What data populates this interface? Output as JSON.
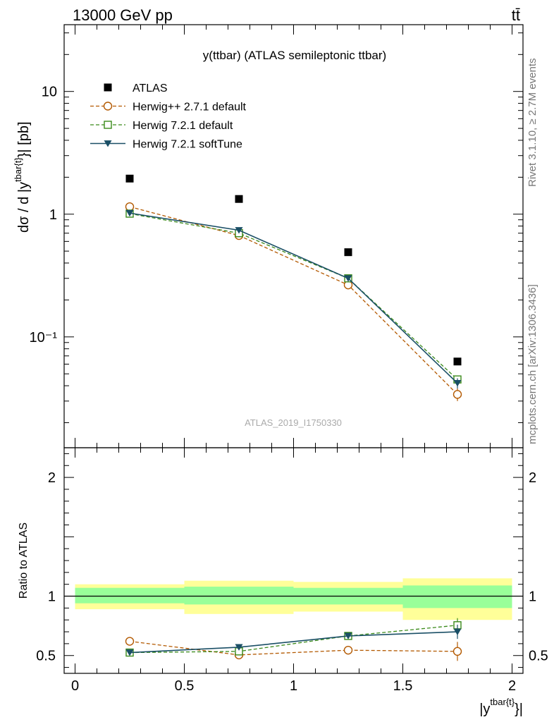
{
  "header": {
    "left_title": "13000 GeV pp",
    "right_title": "tt̄"
  },
  "side_labels": {
    "rivet": "Rivet 3.1.10, ≥ 2.7M events",
    "mcplots": "mcplots.cern.ch [arXiv:1306.3436]"
  },
  "chart_data": [
    {
      "type": "scatter",
      "title": "y(ttbar) (ATLAS semileptonic ttbar)",
      "watermark": "ATLAS_2019_I1750330",
      "xlabel": "|y^{tbar{t}}|",
      "ylabel": "dσ / d |y^{tbar{t}}| [pb]",
      "yscale": "log",
      "ylim": [
        0.0125,
        35
      ],
      "xlim": [
        -0.05,
        2.05
      ],
      "y_tick_labels": [
        "10⁻¹",
        "1",
        "10"
      ],
      "legend_position": "top-left",
      "series": [
        {
          "name": "ATLAS",
          "color": "#000000",
          "marker": "filled-square",
          "x": [
            0.25,
            0.75,
            1.25,
            1.75
          ],
          "y": [
            1.95,
            1.33,
            0.49,
            0.063
          ]
        },
        {
          "name": "Herwig++ 2.7.1 default",
          "color": "#b35900",
          "marker": "open-circle",
          "line": "dashed",
          "x": [
            0.25,
            0.75,
            1.25,
            1.75
          ],
          "y": [
            1.15,
            0.67,
            0.265,
            0.034
          ],
          "yerr": [
            0.02,
            0.015,
            0.008,
            0.004
          ]
        },
        {
          "name": "Herwig 7.2.1 default",
          "color": "#3a8a1a",
          "marker": "open-square",
          "line": "dashed",
          "x": [
            0.25,
            0.75,
            1.25,
            1.75
          ],
          "y": [
            1.01,
            0.7,
            0.3,
            0.045
          ],
          "yerr": [
            0.015,
            0.012,
            0.006,
            0.003
          ]
        },
        {
          "name": "Herwig 7.2.1 softTune",
          "color": "#1a4f66",
          "marker": "filled-triangle-down",
          "line": "solid",
          "x": [
            0.25,
            0.75,
            1.25,
            1.75
          ],
          "y": [
            1.02,
            0.74,
            0.3,
            0.042
          ],
          "yerr": [
            0.015,
            0.012,
            0.006,
            0.004
          ]
        }
      ]
    },
    {
      "type": "scatter",
      "ylabel": "Ratio to ATLAS",
      "xlabel": "|y^{tbar{t}}|",
      "ylim": [
        0.35,
        2.25
      ],
      "xlim": [
        -0.05,
        2.05
      ],
      "x_tick_labels": [
        "0",
        "0.5",
        "1",
        "1.5",
        "2"
      ],
      "y_tick_labels": [
        "0.5",
        "1",
        "2"
      ],
      "bands": {
        "bins": [
          [
            0,
            0.5
          ],
          [
            0.5,
            1.0
          ],
          [
            1.0,
            1.5
          ],
          [
            1.5,
            2.0
          ]
        ],
        "inner": [
          [
            0.94,
            1.07
          ],
          [
            0.93,
            1.08
          ],
          [
            0.93,
            1.07
          ],
          [
            0.9,
            1.09
          ]
        ],
        "outer": [
          [
            0.89,
            1.1
          ],
          [
            0.85,
            1.13
          ],
          [
            0.87,
            1.12
          ],
          [
            0.8,
            1.15
          ]
        ],
        "inner_color": "#99ff99",
        "outer_color": "#ffff99"
      },
      "series": [
        {
          "name": "Herwig++ 2.7.1 default",
          "color": "#b35900",
          "marker": "open-circle",
          "line": "dashed",
          "x": [
            0.25,
            0.75,
            1.25,
            1.75
          ],
          "y": [
            0.62,
            0.505,
            0.545,
            0.535
          ],
          "yerr": [
            0.01,
            0.01,
            0.02,
            0.08
          ]
        },
        {
          "name": "Herwig 7.2.1 default",
          "color": "#3a8a1a",
          "marker": "open-square",
          "line": "dashed",
          "x": [
            0.25,
            0.75,
            1.25,
            1.75
          ],
          "y": [
            0.525,
            0.535,
            0.665,
            0.755
          ],
          "yerr": [
            0.01,
            0.01,
            0.015,
            0.06
          ]
        },
        {
          "name": "Herwig 7.2.1 softTune",
          "color": "#1a4f66",
          "marker": "filled-triangle-down",
          "line": "solid",
          "x": [
            0.25,
            0.75,
            1.25,
            1.75
          ],
          "y": [
            0.525,
            0.57,
            0.665,
            0.7
          ],
          "yerr": [
            0.01,
            0.01,
            0.015,
            0.06
          ]
        }
      ]
    }
  ]
}
